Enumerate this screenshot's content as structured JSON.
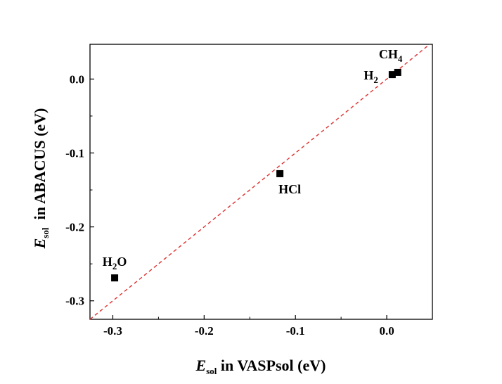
{
  "chart_data": {
    "type": "scatter",
    "title": "",
    "xlabel": {
      "var": "E",
      "sub": "sol",
      "rest": " in VASPsol (eV)"
    },
    "ylabel": {
      "var": "E",
      "sub": "sol",
      "rest": "  in ABACUS (eV)"
    },
    "xlim": [
      -0.325,
      0.05
    ],
    "ylim": [
      -0.325,
      0.047
    ],
    "xticks": [
      -0.3,
      -0.2,
      -0.1,
      0.0
    ],
    "xtick_labels": [
      "-0.3",
      "-0.2",
      "-0.1",
      "0.0"
    ],
    "yticks": [
      -0.3,
      -0.2,
      -0.1,
      0.0
    ],
    "ytick_labels": [
      "-0.3",
      "-0.2",
      "-0.1",
      "0.0"
    ],
    "points": [
      {
        "name": "H2O",
        "label": {
          "main": "H",
          "sub": "2",
          "tail": "O"
        },
        "x": -0.298,
        "y": -0.269,
        "label_pos": "above-left"
      },
      {
        "name": "HCl",
        "label": {
          "main": "HCl",
          "sub": "",
          "tail": ""
        },
        "x": -0.117,
        "y": -0.128,
        "label_pos": "below"
      },
      {
        "name": "H2",
        "label": {
          "main": "H",
          "sub": "2",
          "tail": ""
        },
        "x": 0.006,
        "y": 0.006,
        "label_pos": "left"
      },
      {
        "name": "CH4",
        "label": {
          "main": "CH",
          "sub": "4",
          "tail": ""
        },
        "x": 0.012,
        "y": 0.009,
        "label_pos": "above"
      }
    ],
    "reference_line": {
      "type": "y=x",
      "style": "dashed",
      "color": "#e03030"
    },
    "marker": {
      "shape": "square",
      "color": "#000000"
    },
    "grid": false,
    "legend": "none"
  }
}
